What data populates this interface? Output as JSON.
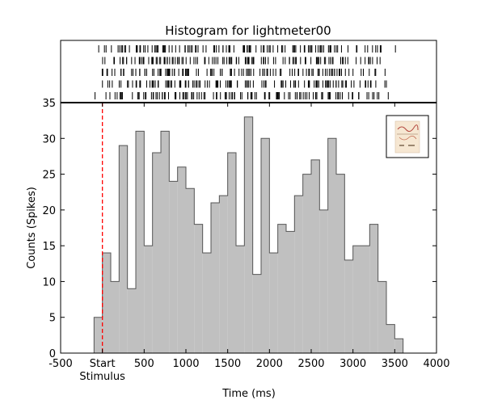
{
  "chart_data": {
    "type": "bar",
    "title": "Histogram for lightmeter00",
    "xlabel": "Time (ms)",
    "ylabel": "Counts (Spikes)",
    "xlim": [
      -500,
      4000
    ],
    "ylim": [
      0,
      35
    ],
    "bin_width_ms": 100,
    "x_ticks": [
      {
        "value": -500,
        "label": "-500"
      },
      {
        "value": 0,
        "label": "Start"
      },
      {
        "value": 500,
        "label": "500"
      },
      {
        "value": 1000,
        "label": "1000"
      },
      {
        "value": 1500,
        "label": "1500"
      },
      {
        "value": 2000,
        "label": "2000"
      },
      {
        "value": 2500,
        "label": "2500"
      },
      {
        "value": 3000,
        "label": "3000"
      },
      {
        "value": 3500,
        "label": "3500"
      },
      {
        "value": 4000,
        "label": "4000"
      }
    ],
    "x_tick_sublabel": "Stimulus",
    "y_ticks": [
      0,
      5,
      10,
      15,
      20,
      25,
      30,
      35
    ],
    "bins_start_ms": [
      -100,
      0,
      100,
      200,
      300,
      400,
      500,
      600,
      700,
      800,
      900,
      1000,
      1100,
      1200,
      1300,
      1400,
      1500,
      1600,
      1700,
      1800,
      1900,
      2000,
      2100,
      2200,
      2300,
      2400,
      2500,
      2600,
      2700,
      2800,
      2900,
      3000,
      3100,
      3200,
      3300,
      3400,
      3500
    ],
    "values": [
      5,
      14,
      10,
      29,
      9,
      31,
      15,
      28,
      31,
      24,
      26,
      23,
      18,
      14,
      21,
      22,
      28,
      15,
      33,
      11,
      30,
      14,
      18,
      17,
      22,
      25,
      27,
      20,
      30,
      25,
      13,
      15,
      15,
      18,
      10,
      4,
      2
    ],
    "stimulus_marker_ms": 0,
    "raster_trials": 6,
    "colors": {
      "bar_fill": "#c0c0c0",
      "bar_edge": "#555555",
      "stimulus_line": "#ff0000",
      "raster_tick": "#000000"
    },
    "legend_placement": "top-right",
    "legend_icon": "neuron-thumbnail-icon",
    "grid": false
  }
}
